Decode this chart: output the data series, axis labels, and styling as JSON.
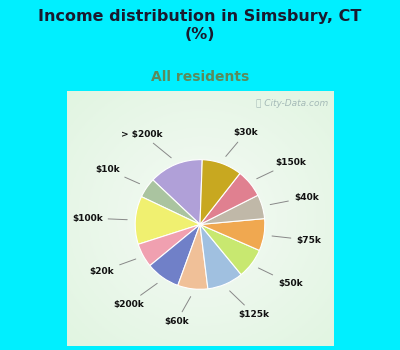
{
  "title": "Income distribution in Simsbury, CT\n(%)",
  "subtitle": "All residents",
  "title_color": "#1a1a2e",
  "subtitle_color": "#5b8a5b",
  "bg_cyan": "#00efff",
  "bg_chart": "#d8f0e8",
  "labels": [
    "> $200k",
    "$10k",
    "$100k",
    "$20k",
    "$200k",
    "$60k",
    "$125k",
    "$50k",
    "$75k",
    "$40k",
    "$150k",
    "$30k"
  ],
  "values": [
    13.5,
    5.0,
    12.0,
    6.0,
    8.5,
    7.5,
    9.0,
    7.5,
    8.0,
    6.0,
    7.0,
    10.0
  ],
  "colors": [
    "#b0a0d8",
    "#aac4a0",
    "#f0f070",
    "#f0a0b0",
    "#7080c8",
    "#f0c098",
    "#a0c0e0",
    "#c8e870",
    "#f0a850",
    "#c0b8a8",
    "#e08090",
    "#c8a820"
  ],
  "startangle": 88
}
